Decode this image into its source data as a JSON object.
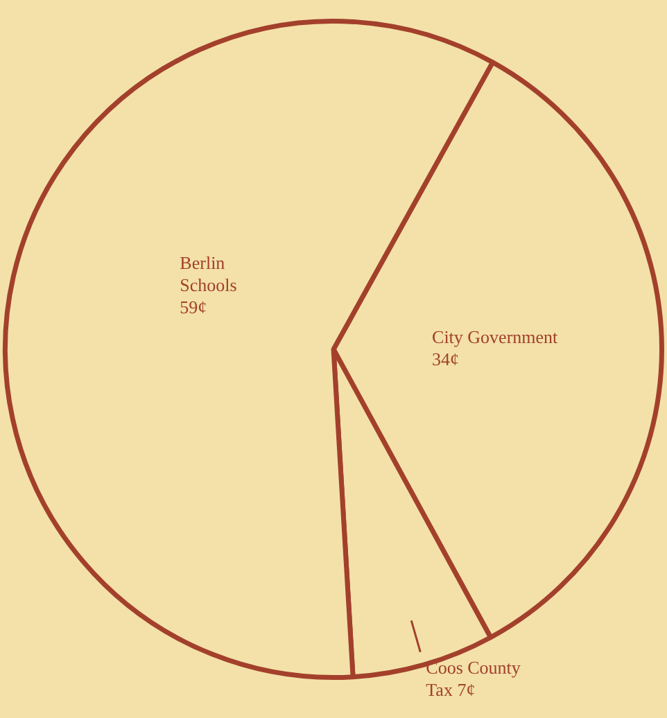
{
  "chart_data": {
    "type": "pie",
    "categories": [
      "City Government",
      "Coos County Tax",
      "Berlin Schools"
    ],
    "values": [
      34,
      7,
      59
    ],
    "value_labels": [
      "34¢",
      "7¢",
      "59¢"
    ],
    "colors": [
      "#f3e1a9",
      "#f3e1a9",
      "#f3e1a9"
    ]
  }
}
